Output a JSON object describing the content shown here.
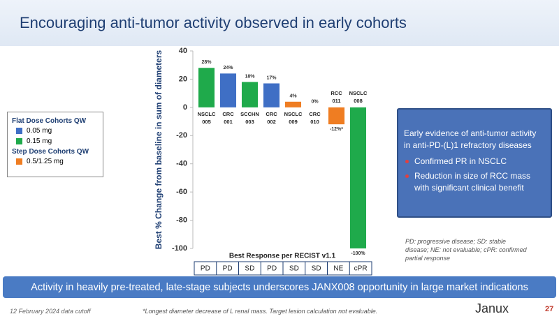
{
  "header": {
    "title": "Encouraging anti-tumor activity observed in early cohorts"
  },
  "chart_data": {
    "type": "bar",
    "y_label": "Best % Change from baseline in sum of diameters",
    "x_label": "Best Response per RECIST v1.1",
    "categories": [
      [
        "NSCLC",
        "005"
      ],
      [
        "CRC",
        "001"
      ],
      [
        "SCCHN",
        "003"
      ],
      [
        "CRC",
        "002"
      ],
      [
        "NSCLC",
        "009"
      ],
      [
        "CRC",
        "010"
      ],
      [
        "RCC",
        "011"
      ],
      [
        "NSCLC",
        "008"
      ]
    ],
    "values": [
      28,
      24,
      18,
      17,
      4,
      0,
      -12,
      -100
    ],
    "value_labels": [
      "28%",
      "24%",
      "18%",
      "17%",
      "4%",
      "0%",
      "-12%*",
      "-100%"
    ],
    "colors": [
      "#1faa4b",
      "#3f6fc5",
      "#1faa4b",
      "#3f6fc5",
      "#ef7d22",
      "#ef7d22",
      "#ef7d22",
      "#1faa4b"
    ],
    "responses": [
      "PD",
      "PD",
      "SD",
      "PD",
      "SD",
      "SD",
      "NE",
      "cPR"
    ],
    "ylim": [
      -100,
      40
    ],
    "yticks": [
      40,
      20,
      0,
      -20,
      -40,
      -60,
      -80,
      -100
    ],
    "legend": [
      {
        "title": "Flat Dose Cohorts QW",
        "items": [
          {
            "name": "0.05 mg",
            "color": "#3f6fc5"
          },
          {
            "name": "0.15 mg",
            "color": "#1faa4b"
          }
        ]
      },
      {
        "title": "Step Dose Cohorts QW",
        "items": [
          {
            "name": "0.5/1.25 mg",
            "color": "#ef7d22"
          }
        ]
      }
    ]
  },
  "callout": {
    "title": "Early evidence of anti-tumor activity in anti-PD-(L)1 refractory diseases",
    "bullets": [
      "Confirmed PR in NSCLC",
      "Reduction in size of RCC mass with significant clinical benefit"
    ]
  },
  "abbreviations": "PD: progressive disease; SD: stable disease; NE: not evaluable; cPR: confirmed partial response",
  "banner": "Activity in heavily pre-treated, late-stage subjects underscores JANX008 opportunity in large market indications",
  "footer": {
    "date": "12 February 2024 data cutoff",
    "footnote": "*Longest diameter decrease of L renal mass.  Target lesion calculation not evaluable.",
    "logo": "Janux",
    "page": "27"
  }
}
